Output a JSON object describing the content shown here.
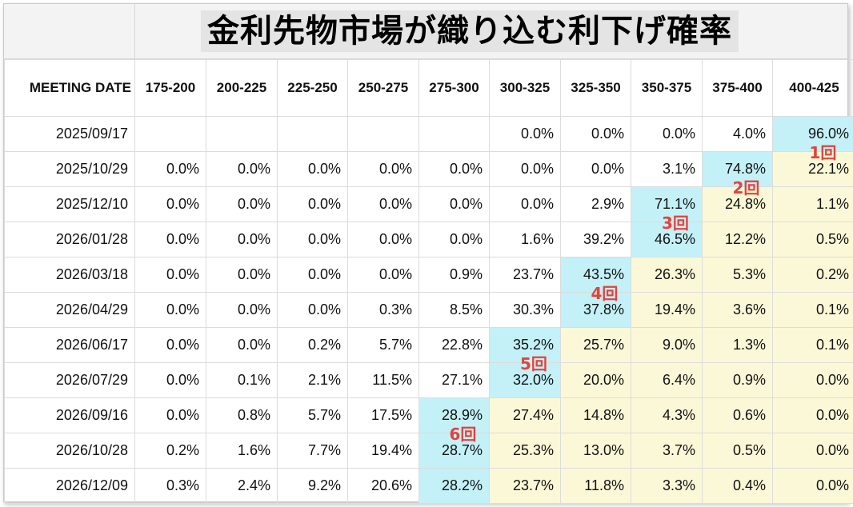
{
  "title": "金利先物市場が織り込む利下げ確率",
  "columns": [
    "MEETING DATE",
    "175-200",
    "200-225",
    "225-250",
    "250-275",
    "275-300",
    "300-325",
    "325-350",
    "350-375",
    "375-400",
    "400-425"
  ],
  "rows": [
    {
      "date": "2025/09/17",
      "cells": [
        "",
        "",
        "",
        "",
        "",
        "0.0%",
        "0.0%",
        "0.0%",
        "4.0%",
        "96.0%"
      ]
    },
    {
      "date": "2025/10/29",
      "cells": [
        "0.0%",
        "0.0%",
        "0.0%",
        "0.0%",
        "0.0%",
        "0.0%",
        "0.0%",
        "3.1%",
        "74.8%",
        "22.1%"
      ]
    },
    {
      "date": "2025/12/10",
      "cells": [
        "0.0%",
        "0.0%",
        "0.0%",
        "0.0%",
        "0.0%",
        "0.0%",
        "2.9%",
        "71.1%",
        "24.8%",
        "1.1%"
      ]
    },
    {
      "date": "2026/01/28",
      "cells": [
        "0.0%",
        "0.0%",
        "0.0%",
        "0.0%",
        "0.0%",
        "1.6%",
        "39.2%",
        "46.5%",
        "12.2%",
        "0.5%"
      ]
    },
    {
      "date": "2026/03/18",
      "cells": [
        "0.0%",
        "0.0%",
        "0.0%",
        "0.0%",
        "0.9%",
        "23.7%",
        "43.5%",
        "26.3%",
        "5.3%",
        "0.2%"
      ]
    },
    {
      "date": "2026/04/29",
      "cells": [
        "0.0%",
        "0.0%",
        "0.0%",
        "0.3%",
        "8.5%",
        "30.3%",
        "37.8%",
        "19.4%",
        "3.6%",
        "0.1%"
      ]
    },
    {
      "date": "2026/06/17",
      "cells": [
        "0.0%",
        "0.0%",
        "0.2%",
        "5.7%",
        "22.8%",
        "35.2%",
        "25.7%",
        "9.0%",
        "1.3%",
        "0.1%"
      ]
    },
    {
      "date": "2026/07/29",
      "cells": [
        "0.0%",
        "0.1%",
        "2.1%",
        "11.5%",
        "27.1%",
        "32.0%",
        "20.0%",
        "6.4%",
        "0.9%",
        "0.0%"
      ]
    },
    {
      "date": "2026/09/16",
      "cells": [
        "0.0%",
        "0.8%",
        "5.7%",
        "17.5%",
        "28.9%",
        "27.4%",
        "14.8%",
        "4.3%",
        "0.6%",
        "0.0%"
      ]
    },
    {
      "date": "2026/10/28",
      "cells": [
        "0.2%",
        "1.6%",
        "7.7%",
        "19.4%",
        "28.7%",
        "25.3%",
        "13.0%",
        "3.7%",
        "0.5%",
        "0.0%"
      ]
    },
    {
      "date": "2026/12/09",
      "cells": [
        "0.3%",
        "2.4%",
        "9.2%",
        "20.6%",
        "28.2%",
        "23.7%",
        "11.8%",
        "3.3%",
        "0.4%",
        "0.0%"
      ]
    }
  ],
  "highlight_start_col": [
    9,
    8,
    7,
    7,
    6,
    6,
    5,
    5,
    4,
    4,
    4
  ],
  "markers": [
    {
      "label": "1回",
      "row": 0,
      "col": 9
    },
    {
      "label": "2回",
      "row": 1,
      "col": 8
    },
    {
      "label": "3回",
      "row": 2,
      "col": 7
    },
    {
      "label": "4回",
      "row": 4,
      "col": 6
    },
    {
      "label": "5回",
      "row": 6,
      "col": 5
    },
    {
      "label": "6回",
      "row": 8,
      "col": 4
    }
  ],
  "colors": {
    "cyan": "#c3f1f7",
    "yellow": "#fbf8d7",
    "marker": "#e8403a"
  }
}
